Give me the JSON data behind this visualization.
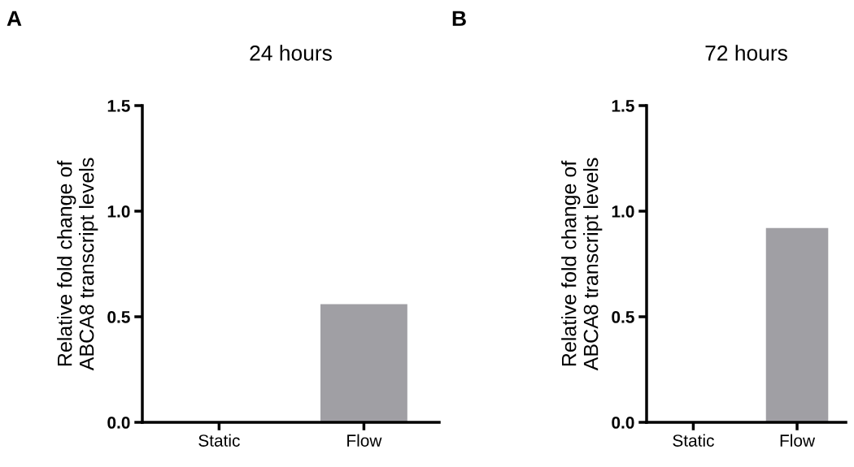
{
  "chart_data": [
    {
      "type": "bar",
      "title": "24 hours",
      "ylabel": "Relative fold change of\nABCA8 transcript levels",
      "categories": [
        "Static",
        "Flow"
      ],
      "values": [
        0,
        0.56
      ],
      "color": "#a09fa4",
      "ylim": [
        0,
        1.5
      ],
      "yticks": [
        {
          "value": 0,
          "label": "0.0"
        },
        {
          "value": 0.5,
          "label": "0.5"
        },
        {
          "value": 1,
          "label": "1.0"
        },
        {
          "value": 1.5,
          "label": "1.5"
        }
      ],
      "grid": false,
      "annotations": [
        "A"
      ]
    },
    {
      "type": "bar",
      "title": "72 hours",
      "ylabel": "Relative fold change of\nABCA8 transcript levels",
      "categories": [
        "Static",
        "Flow"
      ],
      "values": [
        0,
        0.92
      ],
      "color": "#a09fa4",
      "ylim": [
        0,
        1.5
      ],
      "yticks": [
        {
          "value": 0,
          "label": "0.0"
        },
        {
          "value": 0.5,
          "label": "0.5"
        },
        {
          "value": 1,
          "label": "1.0"
        },
        {
          "value": 1.5,
          "label": "1.5"
        }
      ],
      "grid": false,
      "annotations": [
        "B"
      ]
    }
  ]
}
